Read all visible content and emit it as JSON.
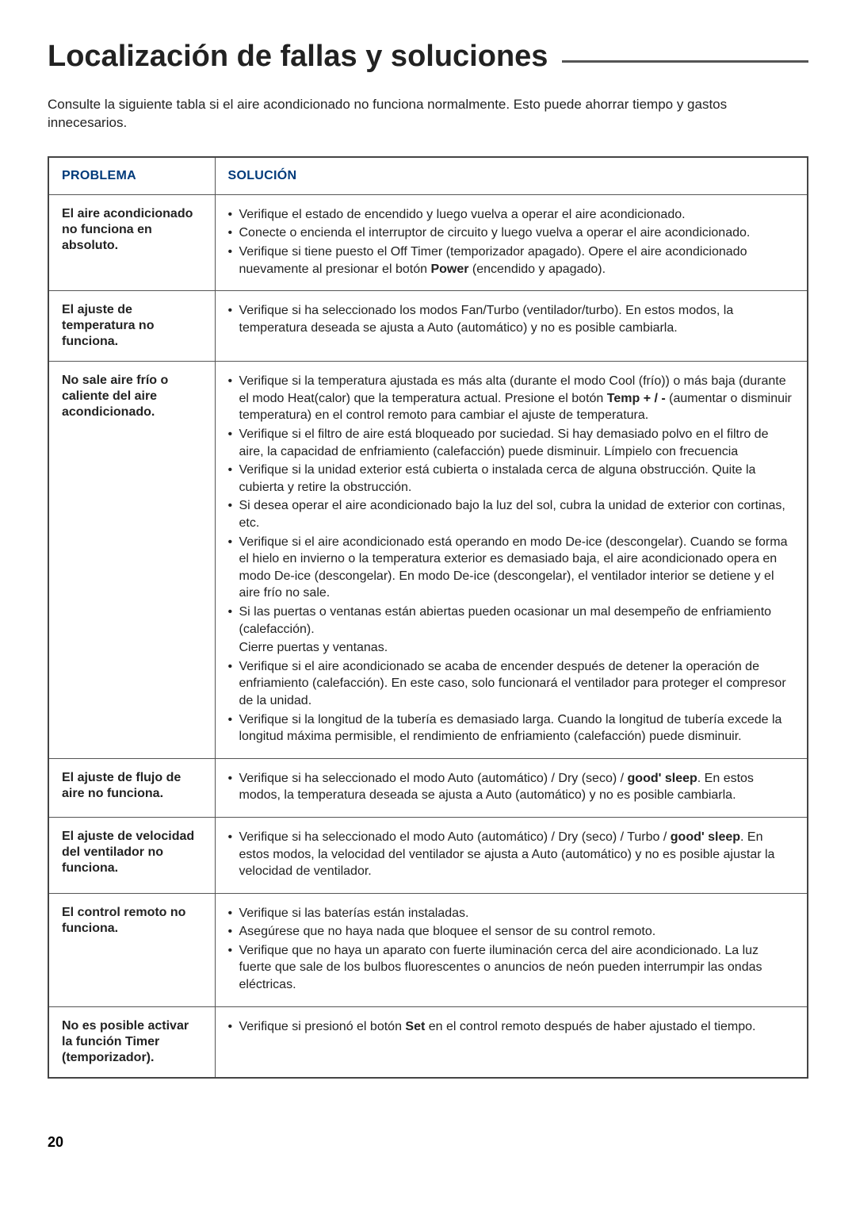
{
  "title": "Localización de fallas y soluciones",
  "intro": "Consulte la siguiente tabla si el aire acondicionado no funciona normalmente. Esto puede ahorrar tiempo y gastos innecesarios.",
  "columns": {
    "problem": "PROBLEMA",
    "solution": "SOLUCIÓN"
  },
  "rows": [
    {
      "problem": "El aire acondicionado no funciona en absoluto.",
      "items": [
        {
          "t": "Verifique el estado de encendido y luego vuelva a operar el aire acondicionado."
        },
        {
          "t": "Conecte o encienda el interruptor de circuito y luego vuelva a operar el aire acondicionado."
        },
        {
          "pre": "Verifique si tiene puesto el Off Timer (temporizador apagado). Opere el aire acondicionado nuevamente al presionar el botón ",
          "b": "Power",
          "post": " (encendido y apagado)."
        }
      ]
    },
    {
      "problem": "El ajuste de temperatura no funciona.",
      "items": [
        {
          "t": "Verifique si ha seleccionado los modos Fan/Turbo (ventilador/turbo).  En estos modos, la temperatura deseada se ajusta a Auto (automático) y no es posible cambiarla."
        }
      ]
    },
    {
      "problem": "No sale aire frío o caliente del aire acondicionado.",
      "items": [
        {
          "pre": "Verifique si la temperatura ajustada es más alta (durante el modo Cool (frío)) o más baja (durante el modo Heat(calor) que la temperatura actual. Presione el botón ",
          "b": "Temp + / -",
          "post": " (aumentar o disminuir temperatura) en el control remoto para cambiar el ajuste de temperatura."
        },
        {
          "t": "Verifique si el filtro de aire está bloqueado por suciedad. Si hay demasiado polvo en el filtro de aire, la capacidad de enfriamiento (calefacción) puede disminuir. Límpielo con frecuencia"
        },
        {
          "t": "Verifique si la unidad exterior está cubierta o instalada cerca de alguna obstrucción. Quite la cubierta y retire la obstrucción."
        },
        {
          "t": "Si desea operar el aire acondicionado bajo la luz del sol, cubra la unidad de exterior con cortinas, etc."
        },
        {
          "t": "Verifique si el aire acondicionado está operando en modo De-ice (descongelar). Cuando se forma el hielo en invierno o la temperatura exterior es demasiado baja, el aire acondicionado opera en modo De-ice (descongelar). En modo De-ice (descongelar), el ventilador interior se detiene y el aire frío no sale."
        },
        {
          "t": "Si las puertas o ventanas están abiertas pueden ocasionar un mal desempeño de enfriamiento (calefacción).",
          "sub": "Cierre puertas y ventanas."
        },
        {
          "t": "Verifique si el aire acondicionado se acaba de encender después de detener la operación de enfriamiento (calefacción). En este caso, solo funcionará el ventilador para proteger el compresor de la unidad."
        },
        {
          "t": "Verifique si la longitud de la tubería es demasiado larga. Cuando la longitud de tubería excede la longitud máxima permisible, el rendimiento de enfriamiento (calefacción) puede disminuir."
        }
      ]
    },
    {
      "problem": "El ajuste de flujo de aire no funciona.",
      "items": [
        {
          "pre": "Verifique si ha seleccionado el modo Auto (automático) / Dry (seco) / ",
          "b": "good' sleep",
          "post": ". En estos modos, la temperatura deseada se ajusta a Auto (automático) y no es posible cambiarla."
        }
      ]
    },
    {
      "problem": "El ajuste de velocidad del ventilador no funciona.",
      "items": [
        {
          "pre": "Verifique si ha seleccionado el modo Auto (automático) / Dry (seco) / Turbo / ",
          "b": "good' sleep",
          "post": ". En estos modos, la velocidad del ventilador se ajusta a Auto (automático) y no es posible ajustar la velocidad de ventilador."
        }
      ]
    },
    {
      "problem": "El control remoto no funciona.",
      "items": [
        {
          "t": "Verifique si las baterías están instaladas."
        },
        {
          "t": "Asegúrese que no haya nada que bloquee el sensor de su control remoto."
        },
        {
          "t": "Verifique que no haya un aparato con fuerte iluminación cerca del aire acondicionado. La luz fuerte que sale de los bulbos fluorescentes o anuncios de neón pueden interrumpir las ondas eléctricas."
        }
      ]
    },
    {
      "problem": "No es posible activar la función Timer (temporizador).",
      "items": [
        {
          "pre": "Verifique si presionó el botón ",
          "b": "Set",
          "post": " en el control remoto después de haber ajustado el tiempo."
        }
      ]
    }
  ],
  "pagenum": "20"
}
